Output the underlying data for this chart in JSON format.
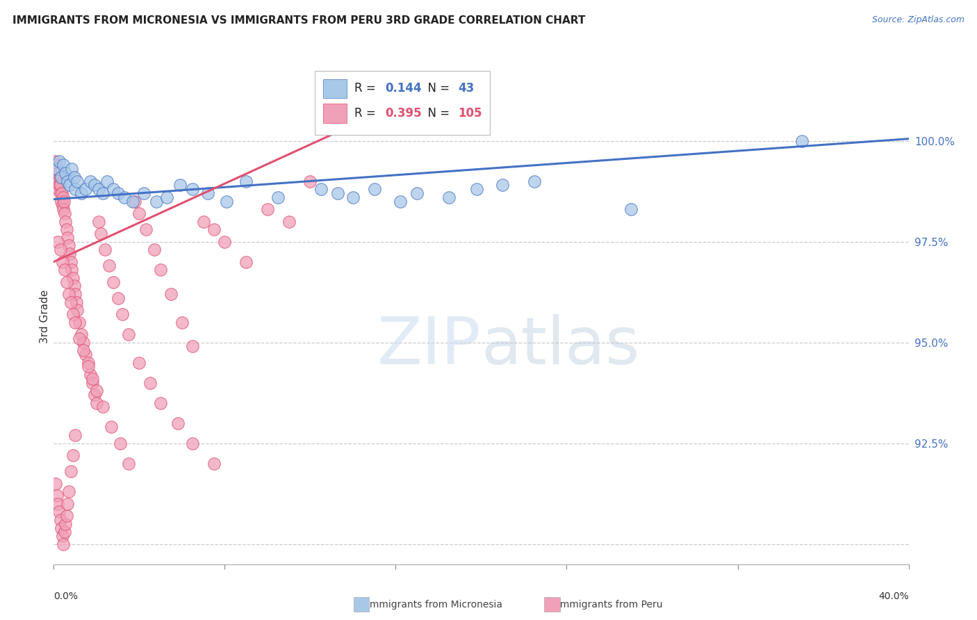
{
  "title": "IMMIGRANTS FROM MICRONESIA VS IMMIGRANTS FROM PERU 3RD GRADE CORRELATION CHART",
  "source": "Source: ZipAtlas.com",
  "ylabel": "3rd Grade",
  "y_ticks": [
    90.0,
    92.5,
    95.0,
    97.5,
    100.0
  ],
  "y_tick_labels": [
    "",
    "92.5%",
    "95.0%",
    "97.5%",
    "100.0%"
  ],
  "xlim": [
    0.0,
    40.0
  ],
  "ylim": [
    89.5,
    101.8
  ],
  "micronesia_R": 0.144,
  "micronesia_N": 43,
  "peru_R": 0.395,
  "peru_N": 105,
  "micronesia_color": "#A8C8E8",
  "peru_color": "#F0A0B8",
  "micronesia_line_color": "#4472C4",
  "peru_line_color": "#E05070",
  "micro_line_x0": 0.0,
  "micro_line_y0": 98.55,
  "micro_line_x1": 40.0,
  "micro_line_y1": 100.05,
  "peru_line_x0": 0.0,
  "peru_line_y0": 97.0,
  "peru_line_x1": 13.0,
  "peru_line_y1": 100.15,
  "micronesia_x": [
    0.15,
    0.25,
    0.35,
    0.45,
    0.55,
    0.65,
    0.75,
    0.85,
    0.95,
    1.0,
    1.1,
    1.3,
    1.5,
    1.7,
    1.9,
    2.1,
    2.3,
    2.5,
    2.8,
    3.0,
    3.3,
    3.7,
    4.2,
    4.8,
    5.3,
    5.9,
    6.5,
    7.2,
    8.1,
    9.0,
    10.5,
    12.5,
    13.3,
    14.0,
    15.0,
    16.2,
    17.0,
    18.5,
    19.8,
    21.0,
    22.5,
    27.0,
    35.0
  ],
  "micronesia_y": [
    99.3,
    99.5,
    99.1,
    99.4,
    99.2,
    99.0,
    98.9,
    99.3,
    99.1,
    98.8,
    99.0,
    98.7,
    98.8,
    99.0,
    98.9,
    98.8,
    98.7,
    99.0,
    98.8,
    98.7,
    98.6,
    98.5,
    98.7,
    98.5,
    98.6,
    98.9,
    98.8,
    98.7,
    98.5,
    99.0,
    98.6,
    98.8,
    98.7,
    98.6,
    98.8,
    98.5,
    98.7,
    98.6,
    98.8,
    98.9,
    99.0,
    98.3,
    100.0
  ],
  "peru_x": [
    0.05,
    0.08,
    0.1,
    0.12,
    0.15,
    0.18,
    0.2,
    0.22,
    0.25,
    0.28,
    0.3,
    0.33,
    0.35,
    0.38,
    0.4,
    0.43,
    0.45,
    0.48,
    0.5,
    0.55,
    0.6,
    0.65,
    0.7,
    0.75,
    0.8,
    0.85,
    0.9,
    0.95,
    1.0,
    1.05,
    1.1,
    1.2,
    1.3,
    1.4,
    1.5,
    1.6,
    1.7,
    1.8,
    1.9,
    2.0,
    2.1,
    2.2,
    2.4,
    2.6,
    2.8,
    3.0,
    3.2,
    3.5,
    3.8,
    4.0,
    4.3,
    4.7,
    5.0,
    5.5,
    6.0,
    6.5,
    7.0,
    7.5,
    8.0,
    9.0,
    10.0,
    11.0,
    12.0,
    0.2,
    0.3,
    0.4,
    0.5,
    0.6,
    0.7,
    0.8,
    0.9,
    1.0,
    1.2,
    1.4,
    1.6,
    1.8,
    2.0,
    2.3,
    2.7,
    3.1,
    3.5,
    4.0,
    4.5,
    5.0,
    5.8,
    6.5,
    7.5,
    0.1,
    0.15,
    0.2,
    0.25,
    0.3,
    0.35,
    0.4,
    0.45,
    0.5,
    0.55,
    0.6,
    0.65,
    0.7,
    0.8,
    0.9,
    1.0
  ],
  "peru_y": [
    99.5,
    99.2,
    99.4,
    99.1,
    99.3,
    99.0,
    98.8,
    99.2,
    98.9,
    99.1,
    98.7,
    98.9,
    98.5,
    98.7,
    98.4,
    98.6,
    98.3,
    98.5,
    98.2,
    98.0,
    97.8,
    97.6,
    97.4,
    97.2,
    97.0,
    96.8,
    96.6,
    96.4,
    96.2,
    96.0,
    95.8,
    95.5,
    95.2,
    95.0,
    94.7,
    94.5,
    94.2,
    94.0,
    93.7,
    93.5,
    98.0,
    97.7,
    97.3,
    96.9,
    96.5,
    96.1,
    95.7,
    95.2,
    98.5,
    98.2,
    97.8,
    97.3,
    96.8,
    96.2,
    95.5,
    94.9,
    98.0,
    97.8,
    97.5,
    97.0,
    98.3,
    98.0,
    99.0,
    97.5,
    97.3,
    97.0,
    96.8,
    96.5,
    96.2,
    96.0,
    95.7,
    95.5,
    95.1,
    94.8,
    94.4,
    94.1,
    93.8,
    93.4,
    92.9,
    92.5,
    92.0,
    94.5,
    94.0,
    93.5,
    93.0,
    92.5,
    92.0,
    91.5,
    91.2,
    91.0,
    90.8,
    90.6,
    90.4,
    90.2,
    90.0,
    90.3,
    90.5,
    90.7,
    91.0,
    91.3,
    91.8,
    92.2,
    92.7
  ]
}
